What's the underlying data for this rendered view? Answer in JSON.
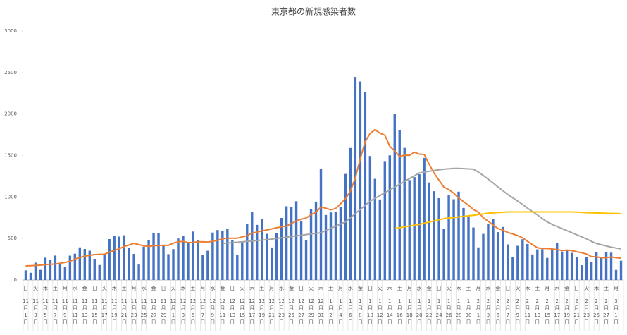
{
  "chart_data": {
    "type": "bar",
    "title": "東京都の新規感染者数",
    "categories": [
      "11月1日",
      null,
      "11月3日",
      null,
      "11月5日",
      null,
      "11月7日",
      null,
      "11月9日",
      null,
      "11月11日",
      null,
      "11月13日",
      null,
      "11月15日",
      null,
      "11月17日",
      null,
      "11月19日",
      null,
      "11月21日",
      null,
      "11月23日",
      null,
      "11月25日",
      null,
      "11月27日",
      null,
      "11月29日",
      null,
      "12月1日",
      null,
      "12月3日",
      null,
      "12月5日",
      null,
      "12月7日",
      null,
      "12月9日",
      null,
      "12月11日",
      null,
      "12月13日",
      null,
      "12月15日",
      null,
      "12月17日",
      null,
      "12月19日",
      null,
      "12月21日",
      null,
      "12月23日",
      null,
      "12月25日",
      null,
      "12月27日",
      null,
      "12月29日",
      null,
      "12月31日",
      null,
      "1月2日",
      null,
      "1月4日",
      null,
      "1月6日",
      null,
      "1月8日",
      null,
      "1月10日",
      null,
      "1月12日",
      null,
      "1月14日",
      null,
      "1月16日",
      null,
      "1月18日",
      null,
      "1月20日",
      null,
      "1月22日",
      null,
      "1月24日",
      null,
      "1月26日",
      null,
      "1月28日",
      null,
      "1月30日",
      null,
      "2月1日",
      null,
      "2月3日",
      null,
      "2月5日",
      null,
      "2月7日",
      null,
      "2月9日",
      null,
      "2月11日",
      null,
      "2月13日",
      null,
      "2月15日",
      null,
      "2月17日",
      null,
      "2月19日",
      null,
      "2月21日",
      null,
      "2月23日",
      null,
      "2月25日",
      null,
      "2月27日",
      null,
      "3月1日",
      null
    ],
    "weekdays": [
      "日",
      null,
      "火",
      null,
      "木",
      null,
      "土",
      null,
      "月",
      null,
      "水",
      null,
      "金",
      null,
      "日",
      null,
      "火",
      null,
      "木",
      null,
      "土",
      null,
      "月",
      null,
      "水",
      null,
      "金",
      null,
      "日",
      null,
      "火",
      null,
      "木",
      null,
      "土",
      null,
      "月",
      null,
      "水",
      null,
      "金",
      null,
      "日",
      null,
      "火",
      null,
      "木",
      null,
      "土",
      null,
      "月",
      null,
      "水",
      null,
      "金",
      null,
      "日",
      null,
      "火",
      null,
      "木",
      null,
      "土",
      null,
      "月",
      null,
      "水",
      null,
      "金",
      null,
      "日",
      null,
      "火",
      null,
      "木",
      null,
      "土",
      null,
      "月",
      null,
      "水",
      null,
      "金",
      null,
      "日",
      null,
      "火",
      null,
      "木",
      null,
      "土",
      null,
      "月",
      null,
      "水",
      null,
      "金",
      null,
      "日",
      null,
      "火",
      null,
      "木",
      null,
      "土",
      null,
      "月",
      null,
      "水",
      null,
      "金",
      null,
      "日",
      null,
      "火",
      null,
      "木",
      null,
      "土",
      null,
      "月",
      null
    ],
    "series": [
      {
        "type": "bar",
        "color": "#4472c4",
        "values": [
          116,
          87,
          209,
          122,
          269,
          242,
          294,
          189,
          157,
          293,
          317,
          393,
          374,
          352,
          255,
          180,
          298,
          493,
          534,
          522,
          539,
          391,
          314,
          186,
          401,
          481,
          570,
          561,
          418,
          311,
          372,
          500,
          533,
          449,
          584,
          480,
          299,
          352,
          572,
          602,
          595,
          621,
          480,
          305,
          460,
          678,
          822,
          664,
          736,
          556,
          392,
          563,
          748,
          888,
          884,
          949,
          708,
          481,
          856,
          944,
          1337,
          783,
          814,
          816,
          884,
          1278,
          1591,
          2447,
          2392,
          2268,
          1494,
          1219,
          970,
          1433,
          1502,
          2001,
          1809,
          1592,
          1204,
          1240,
          1274,
          1471,
          1175,
          1070,
          986,
          618,
          1026,
          973,
          1064,
          868,
          769,
          633,
          393,
          556,
          676,
          734,
          577,
          639,
          429,
          276,
          412,
          491,
          434,
          307,
          369,
          371,
          266,
          378,
          445,
          341,
          353,
          327,
          272,
          178,
          275,
          213,
          340,
          270,
          337,
          329,
          121,
          232
        ]
      },
      {
        "type": "line",
        "color": "#ed7d31",
        "values": [
          170,
          172,
          175,
          180,
          185,
          190,
          191,
          202,
          212,
          224,
          252,
          269,
          288,
          296,
          306,
          309,
          310,
          335,
          355,
          376,
          403,
          422,
          442,
          426,
          412,
          405,
          412,
          415,
          419,
          418,
          445,
          459,
          466,
          449,
          452,
          461,
          460,
          457,
          467,
          477,
          498,
          503,
          503,
          504,
          519,
          534,
          566,
          576,
          592,
          603,
          615,
          630,
          640,
          650,
          681,
          711,
          733,
          746,
          788,
          816,
          880,
          865,
          846,
          862,
          919,
          979,
          1072,
          1230,
          1460,
          1668,
          1765,
          1813,
          1769,
          1746,
          1611,
          1555,
          1490,
          1504,
          1502,
          1540,
          1517,
          1513,
          1395,
          1289,
          1203,
          1119,
          1089,
          1046,
          987,
          944,
          901,
          850,
          818,
          751,
          708,
          661,
          620,
          601,
          572,
          555,
          535,
          508,
          465,
          427,
          388,
          380,
          379,
          374,
          367,
          354,
          360,
          354,
          340,
          328,
          313,
          280,
          280,
          268,
          269,
          277,
          269,
          263
        ]
      },
      {
        "type": "line",
        "color": "#a5a5a5",
        "values": [
          null,
          null,
          null,
          null,
          null,
          null,
          null,
          null,
          null,
          null,
          null,
          null,
          null,
          null,
          null,
          null,
          null,
          null,
          null,
          null,
          null,
          null,
          null,
          null,
          null,
          null,
          null,
          null,
          null,
          null,
          null,
          null,
          null,
          null,
          null,
          null,
          null,
          null,
          null,
          null,
          440,
          445,
          450,
          455,
          460,
          465,
          470,
          475,
          480,
          485,
          493,
          500,
          508,
          516,
          524,
          531,
          539,
          547,
          555,
          562,
          570,
          596,
          622,
          648,
          674,
          700,
          750,
          800,
          850,
          900,
          950,
          984,
          1018,
          1052,
          1086,
          1120,
          1154,
          1188,
          1222,
          1256,
          1290,
          1300,
          1310,
          1320,
          1328,
          1335,
          1340,
          1345,
          1345,
          1342,
          1338,
          1335,
          1300,
          1260,
          1215,
          1170,
          1120,
          1075,
          1030,
          990,
          950,
          910,
          865,
          825,
          785,
          740,
          700,
          670,
          645,
          620,
          595,
          570,
          545,
          520,
          495,
          465,
          440,
          425,
          410,
          395,
          385,
          375
        ]
      },
      {
        "type": "line",
        "color": "#ffc000",
        "values": [
          null,
          null,
          null,
          null,
          null,
          null,
          null,
          null,
          null,
          null,
          null,
          null,
          null,
          null,
          null,
          null,
          null,
          null,
          null,
          null,
          null,
          null,
          null,
          null,
          null,
          null,
          null,
          null,
          null,
          null,
          null,
          null,
          null,
          null,
          null,
          null,
          null,
          null,
          null,
          null,
          null,
          null,
          null,
          null,
          null,
          null,
          null,
          null,
          null,
          null,
          null,
          null,
          null,
          null,
          null,
          null,
          null,
          null,
          null,
          null,
          null,
          null,
          null,
          null,
          null,
          null,
          null,
          null,
          null,
          null,
          null,
          null,
          null,
          null,
          null,
          620,
          630,
          640,
          650,
          660,
          670,
          684,
          698,
          712,
          726,
          740,
          747,
          753,
          760,
          767,
          773,
          780,
          788,
          797,
          805,
          809,
          813,
          816,
          820,
          820,
          820,
          820,
          820,
          820,
          820,
          820,
          820,
          820,
          820,
          820,
          820,
          820,
          818,
          815,
          812,
          810,
          808,
          806,
          804,
          802,
          801,
          800
        ]
      }
    ],
    "ylim": [
      0,
      3000
    ],
    "yticks": [
      0,
      500,
      1000,
      1500,
      2000,
      2500,
      3000
    ]
  }
}
